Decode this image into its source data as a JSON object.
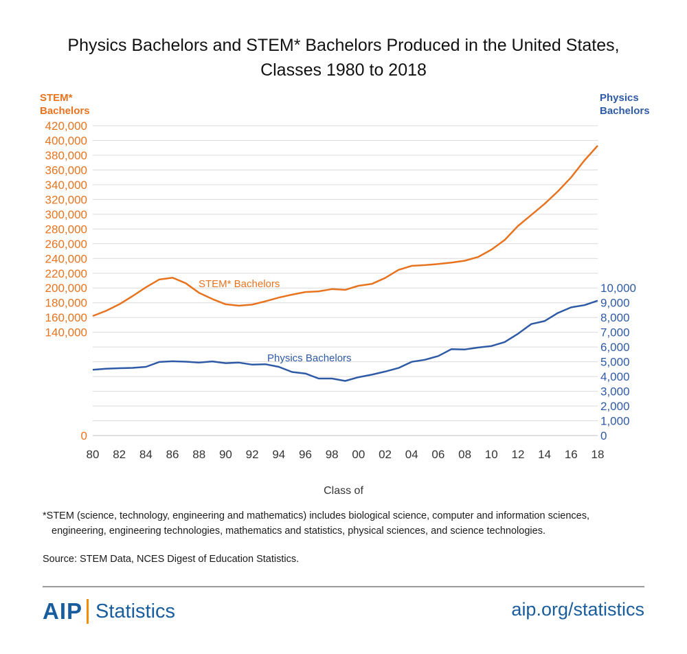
{
  "header": {
    "title_line1": "Physics Bachelors and STEM* Bachelors Produced in the United States,",
    "title_line2": "Classes 1980 to 2018"
  },
  "colors": {
    "stem": "#e8731f",
    "physics": "#2e5aa5",
    "grid": "#d9d9d9",
    "text": "#333333"
  },
  "chart_data": {
    "type": "line",
    "title": "Physics Bachelors and STEM* Bachelors Produced in the United States, Classes 1980 to 2018",
    "xlabel": "Class of",
    "x": [
      1980,
      1981,
      1982,
      1983,
      1984,
      1985,
      1986,
      1987,
      1988,
      1989,
      1990,
      1991,
      1992,
      1993,
      1994,
      1995,
      1996,
      1997,
      1998,
      1999,
      2000,
      2001,
      2002,
      2003,
      2004,
      2005,
      2006,
      2007,
      2008,
      2009,
      2010,
      2011,
      2012,
      2013,
      2014,
      2015,
      2016,
      2017,
      2018
    ],
    "x_tick_labels": [
      "80",
      "82",
      "84",
      "86",
      "88",
      "90",
      "92",
      "94",
      "96",
      "98",
      "00",
      "02",
      "04",
      "06",
      "08",
      "10",
      "12",
      "14",
      "16",
      "18"
    ],
    "y_left": {
      "label_line1": "STEM*",
      "label_line2": "Bachelors",
      "range": [
        0,
        420000
      ],
      "tick_labels": [
        "0",
        "140,000",
        "160,000",
        "180,000",
        "200,000",
        "220,000",
        "240,000",
        "260,000",
        "280,000",
        "300,000",
        "320,000",
        "340,000",
        "360,000",
        "380,000",
        "400,000",
        "420,000"
      ]
    },
    "y_right": {
      "label_line1": "Physics",
      "label_line2": "Bachelors",
      "range": [
        0,
        10000
      ],
      "tick_labels": [
        "0",
        "1,000",
        "2,000",
        "3,000",
        "4,000",
        "5,000",
        "6,000",
        "7,000",
        "8,000",
        "9,000",
        "10,000"
      ]
    },
    "series": [
      {
        "name": "STEM* Bachelors",
        "axis": "left",
        "values": [
          162000,
          169000,
          178000,
          189000,
          201000,
          211500,
          214000,
          206500,
          193500,
          185000,
          178000,
          176000,
          177500,
          182000,
          187000,
          191000,
          194500,
          195500,
          198500,
          197500,
          203000,
          205500,
          213500,
          224500,
          230000,
          231000,
          232500,
          234500,
          237000,
          242000,
          252000,
          265000,
          284000,
          299000,
          314000,
          331000,
          350000,
          373000,
          393000
        ]
      },
      {
        "name": "Physics Bachelors",
        "axis": "right",
        "values": [
          4450,
          4520,
          4560,
          4580,
          4650,
          4980,
          5030,
          5000,
          4940,
          5020,
          4900,
          4940,
          4800,
          4830,
          4650,
          4300,
          4200,
          3860,
          3860,
          3700,
          3950,
          4120,
          4330,
          4570,
          4990,
          5130,
          5380,
          5850,
          5830,
          5960,
          6060,
          6330,
          6890,
          7550,
          7750,
          8300,
          8680,
          8830,
          9130
        ]
      }
    ],
    "annotations": {
      "stem_label": "STEM* Bachelors",
      "physics_label": "Physics Bachelors"
    }
  },
  "footnote": {
    "line1": "*STEM (science, technology, engineering and mathematics) includes biological science, computer and information sciences,",
    "line2": "engineering, engineering technologies, mathematics and statistics, physical sciences, and science technologies."
  },
  "source": "Source: STEM Data, NCES Digest of Education Statistics.",
  "footer": {
    "logo_mark": "AIP",
    "logo_word": "Statistics",
    "url": "aip.org/statistics"
  }
}
